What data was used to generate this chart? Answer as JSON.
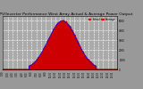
{
  "title": "Solar PV/Inverter Performance West Array Actual & Average Power Output",
  "title_fontsize": 3.2,
  "bg_color": "#999999",
  "plot_bg_color": "#aaaaaa",
  "fill_color": "#cc0000",
  "avg_line_color": "#0000ff",
  "legend_actual_color": "#ff0000",
  "legend_avg_color": "#ff0000",
  "legend_label_actual": "Actual",
  "legend_label_avg": "Average",
  "grid_color": "white",
  "grid_style": "--",
  "grid_alpha": 1.0,
  "peak_value": 5000,
  "peak_hour": 12.5,
  "sigma": 3.0,
  "start_hour": 5.5,
  "end_hour": 19.5,
  "ylim": [
    0,
    5500
  ],
  "xlim": [
    0,
    24
  ],
  "yticks": [
    0,
    1000,
    2000,
    3000,
    4000,
    5000
  ],
  "xticks": [
    0,
    1,
    2,
    3,
    4,
    5,
    6,
    7,
    8,
    9,
    10,
    11,
    12,
    13,
    14,
    15,
    16,
    17,
    18,
    19,
    20,
    21,
    22,
    23,
    24
  ]
}
